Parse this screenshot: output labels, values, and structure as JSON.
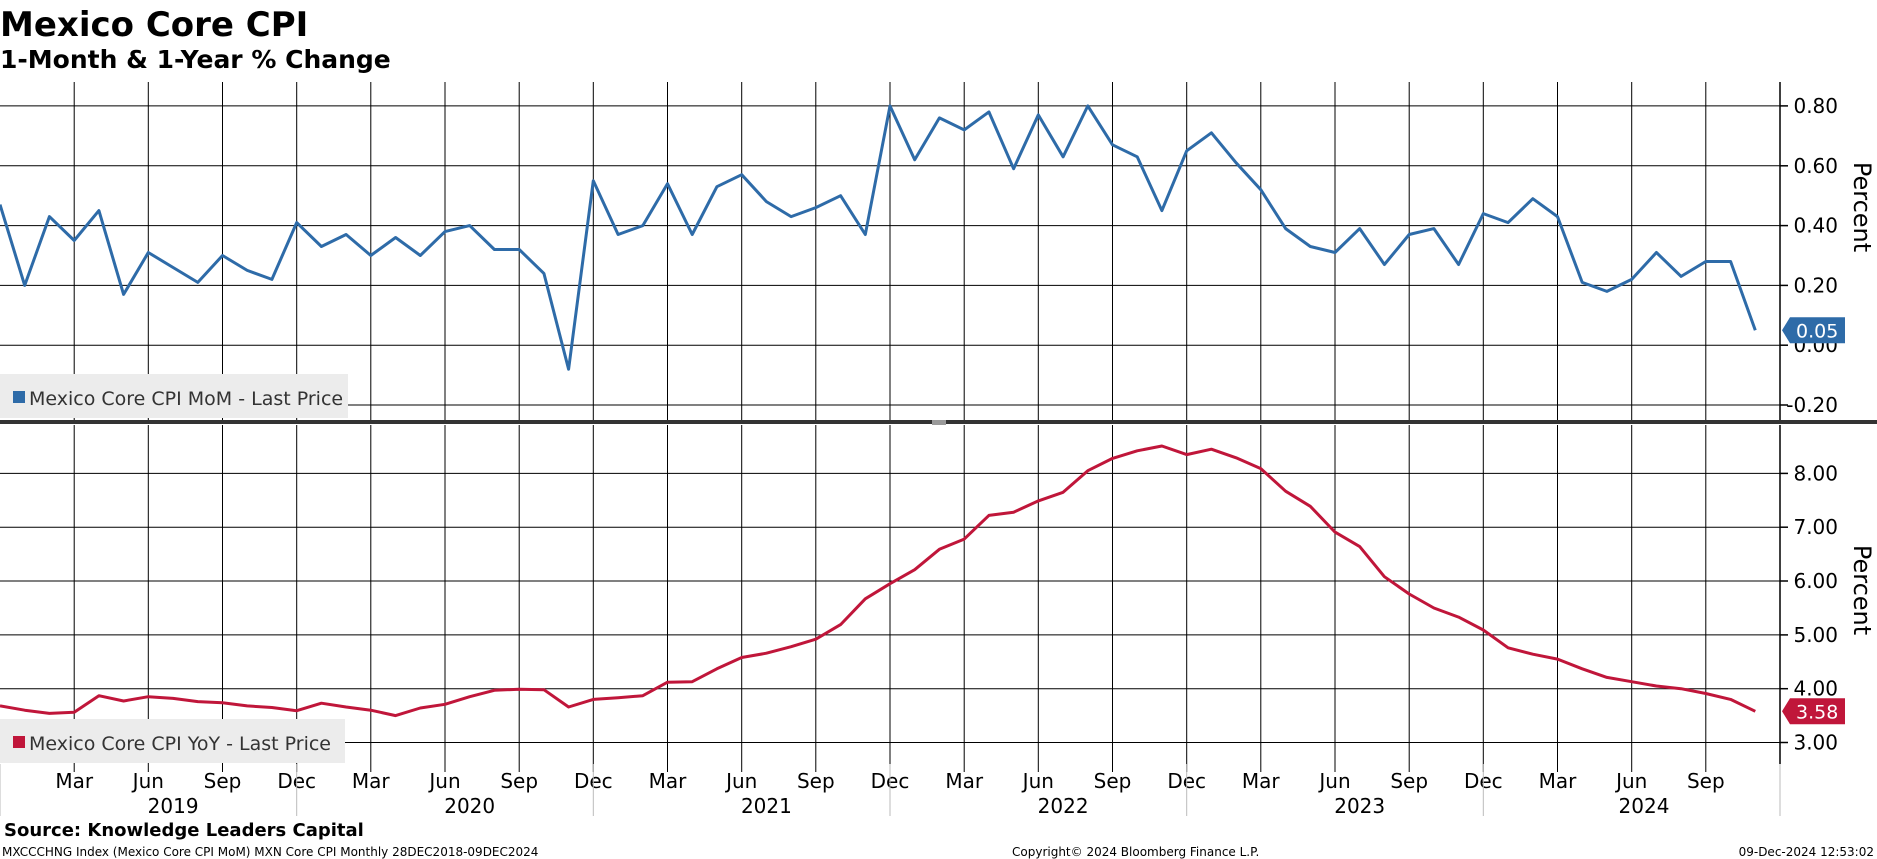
{
  "header": {
    "title": "Mexico Core CPI",
    "subtitle": "1-Month & 1-Year % Change"
  },
  "footer": {
    "source": "Source: Knowledge Leaders Capital",
    "ticker": "MXCCCHNG Index (Mexico Core CPI MoM) MXN Core CPI  Monthly 28DEC2018-09DEC2024",
    "copyright": "Copyright© 2024 Bloomberg Finance L.P.",
    "timestamp": "09-Dec-2024 12:53:02"
  },
  "colors": {
    "mom": "#2E6BA8",
    "yoy": "#C0163A"
  },
  "chart_data": [
    {
      "type": "line",
      "panel": "top",
      "ylabel": "Percent",
      "ylim": [
        -0.25,
        0.88
      ],
      "yticks": [
        "-0.20",
        "0.00",
        "0.20",
        "0.40",
        "0.60",
        "0.80"
      ],
      "grid": true,
      "legend_position": "bottom-left",
      "x_range": [
        "2018-12",
        "2024-12"
      ],
      "series": [
        {
          "name": "Mexico Core CPI MoM - Last Price",
          "last_value_label": "0.05",
          "x": [
            "2018-12",
            "2019-01",
            "2019-02",
            "2019-03",
            "2019-04",
            "2019-05",
            "2019-06",
            "2019-07",
            "2019-08",
            "2019-09",
            "2019-10",
            "2019-11",
            "2019-12",
            "2020-01",
            "2020-02",
            "2020-03",
            "2020-04",
            "2020-05",
            "2020-06",
            "2020-07",
            "2020-08",
            "2020-09",
            "2020-10",
            "2020-11",
            "2020-12",
            "2021-01",
            "2021-02",
            "2021-03",
            "2021-04",
            "2021-05",
            "2021-06",
            "2021-07",
            "2021-08",
            "2021-09",
            "2021-10",
            "2021-11",
            "2021-12",
            "2022-01",
            "2022-02",
            "2022-03",
            "2022-04",
            "2022-05",
            "2022-06",
            "2022-07",
            "2022-08",
            "2022-09",
            "2022-10",
            "2022-11",
            "2022-12",
            "2023-01",
            "2023-02",
            "2023-03",
            "2023-04",
            "2023-05",
            "2023-06",
            "2023-07",
            "2023-08",
            "2023-09",
            "2023-10",
            "2023-11",
            "2023-12",
            "2024-01",
            "2024-02",
            "2024-03",
            "2024-04",
            "2024-05",
            "2024-06",
            "2024-07",
            "2024-08",
            "2024-09",
            "2024-10",
            "2024-11"
          ],
          "values": [
            0.47,
            0.2,
            0.43,
            0.35,
            0.45,
            0.17,
            0.31,
            0.26,
            0.21,
            0.3,
            0.25,
            0.22,
            0.41,
            0.33,
            0.37,
            0.3,
            0.36,
            0.3,
            0.38,
            0.4,
            0.32,
            0.32,
            0.24,
            -0.08,
            0.55,
            0.37,
            0.4,
            0.54,
            0.37,
            0.53,
            0.57,
            0.48,
            0.43,
            0.46,
            0.5,
            0.37,
            0.8,
            0.62,
            0.76,
            0.72,
            0.78,
            0.59,
            0.77,
            0.63,
            0.8,
            0.67,
            0.63,
            0.45,
            0.65,
            0.71,
            0.61,
            0.52,
            0.39,
            0.33,
            0.31,
            0.39,
            0.27,
            0.37,
            0.39,
            0.27,
            0.44,
            0.41,
            0.49,
            0.43,
            0.21,
            0.18,
            0.22,
            0.31,
            0.23,
            0.28,
            0.28,
            0.05
          ]
        }
      ]
    },
    {
      "type": "line",
      "panel": "bottom",
      "ylabel": "Percent",
      "ylim": [
        2.6,
        8.9
      ],
      "yticks": [
        "3.00",
        "4.00",
        "5.00",
        "6.00",
        "7.00",
        "8.00"
      ],
      "grid": true,
      "legend_position": "bottom-left",
      "x_range": [
        "2018-12",
        "2024-12"
      ],
      "xticks": [
        "Mar",
        "Jun",
        "Sep",
        "Dec",
        "Mar",
        "Jun",
        "Sep",
        "Dec",
        "Mar",
        "Jun",
        "Sep",
        "Dec",
        "Mar",
        "Jun",
        "Sep",
        "Dec",
        "Mar",
        "Jun",
        "Sep",
        "Dec",
        "Mar",
        "Jun",
        "Sep"
      ],
      "years": [
        "2019",
        "2020",
        "2021",
        "2022",
        "2023",
        "2024"
      ],
      "series": [
        {
          "name": "Mexico Core CPI YoY - Last Price",
          "last_value_label": "3.58",
          "x": [
            "2018-12",
            "2019-01",
            "2019-02",
            "2019-03",
            "2019-04",
            "2019-05",
            "2019-06",
            "2019-07",
            "2019-08",
            "2019-09",
            "2019-10",
            "2019-11",
            "2019-12",
            "2020-01",
            "2020-02",
            "2020-03",
            "2020-04",
            "2020-05",
            "2020-06",
            "2020-07",
            "2020-08",
            "2020-09",
            "2020-10",
            "2020-11",
            "2020-12",
            "2021-01",
            "2021-02",
            "2021-03",
            "2021-04",
            "2021-05",
            "2021-06",
            "2021-07",
            "2021-08",
            "2021-09",
            "2021-10",
            "2021-11",
            "2021-12",
            "2022-01",
            "2022-02",
            "2022-03",
            "2022-04",
            "2022-05",
            "2022-06",
            "2022-07",
            "2022-08",
            "2022-09",
            "2022-10",
            "2022-11",
            "2022-12",
            "2023-01",
            "2023-02",
            "2023-03",
            "2023-04",
            "2023-05",
            "2023-06",
            "2023-07",
            "2023-08",
            "2023-09",
            "2023-10",
            "2023-11",
            "2023-12",
            "2024-01",
            "2024-02",
            "2024-03",
            "2024-04",
            "2024-05",
            "2024-06",
            "2024-07",
            "2024-08",
            "2024-09",
            "2024-10",
            "2024-11"
          ],
          "values": [
            3.68,
            3.6,
            3.54,
            3.56,
            3.87,
            3.77,
            3.85,
            3.82,
            3.76,
            3.74,
            3.68,
            3.65,
            3.59,
            3.73,
            3.66,
            3.6,
            3.5,
            3.64,
            3.71,
            3.85,
            3.97,
            3.99,
            3.98,
            3.66,
            3.8,
            3.83,
            3.87,
            4.12,
            4.13,
            4.37,
            4.58,
            4.66,
            4.78,
            4.92,
            5.19,
            5.67,
            5.95,
            6.21,
            6.59,
            6.78,
            7.22,
            7.28,
            7.49,
            7.65,
            8.05,
            8.28,
            8.42,
            8.51,
            8.35,
            8.45,
            8.29,
            8.09,
            7.67,
            7.39,
            6.91,
            6.64,
            6.08,
            5.76,
            5.5,
            5.33,
            5.09,
            4.76,
            4.64,
            4.55,
            4.37,
            4.21,
            4.13,
            4.05,
            4.0,
            3.91,
            3.8,
            3.58
          ]
        }
      ]
    }
  ]
}
